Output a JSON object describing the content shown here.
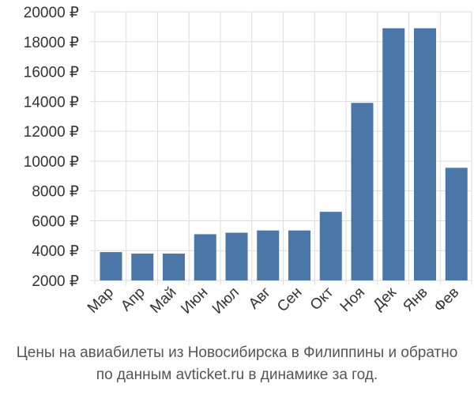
{
  "chart_data": {
    "type": "bar",
    "categories": [
      "Мар",
      "Апр",
      "Май",
      "Июн",
      "Июл",
      "Авг",
      "Сен",
      "Окт",
      "Ноя",
      "Дек",
      "Янв",
      "Фев"
    ],
    "values": [
      3900,
      3800,
      3800,
      5100,
      5200,
      5350,
      5350,
      6600,
      13900,
      18900,
      18900,
      9550
    ],
    "ylim": [
      2000,
      20000
    ],
    "yticks": [
      2000,
      4000,
      6000,
      8000,
      10000,
      12000,
      14000,
      16000,
      18000,
      20000
    ],
    "y_tick_suffix": " ₽",
    "grid": true,
    "bar_color": "#4a76a8",
    "caption_line1": "Цены на авиабилеты из Новосибирска в Филиппины и обратно",
    "caption_line2": "по данным avticket.ru в динамике за год."
  }
}
